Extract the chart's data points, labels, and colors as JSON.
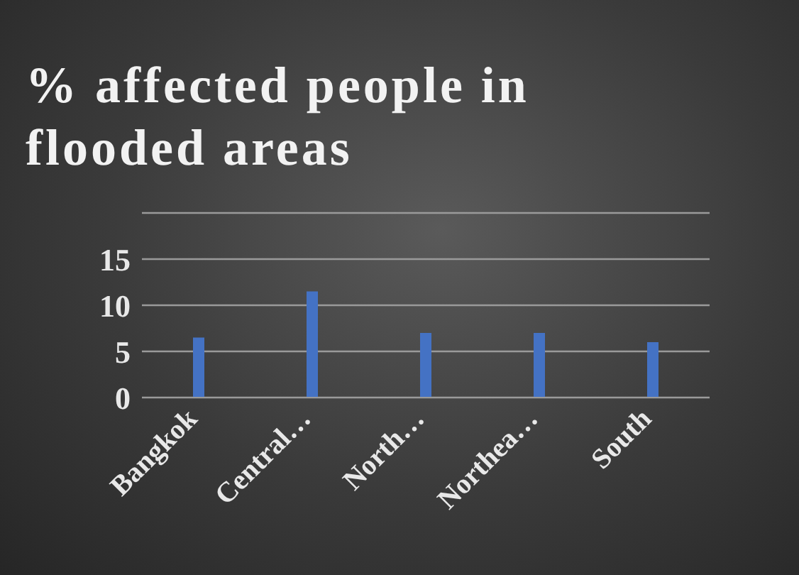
{
  "chart_data": {
    "type": "bar",
    "title": "% affected people in flooded areas",
    "categories": [
      "Bangkok",
      "Central…",
      "North…",
      "Northea…",
      "South"
    ],
    "values": [
      6.5,
      11.5,
      7,
      7,
      6
    ],
    "color": "#4472c4",
    "ylim": [
      0,
      20
    ],
    "yticks": [
      0,
      5,
      10,
      15,
      {
        "value": 20,
        "label": null
      }
    ],
    "grid": "y"
  }
}
